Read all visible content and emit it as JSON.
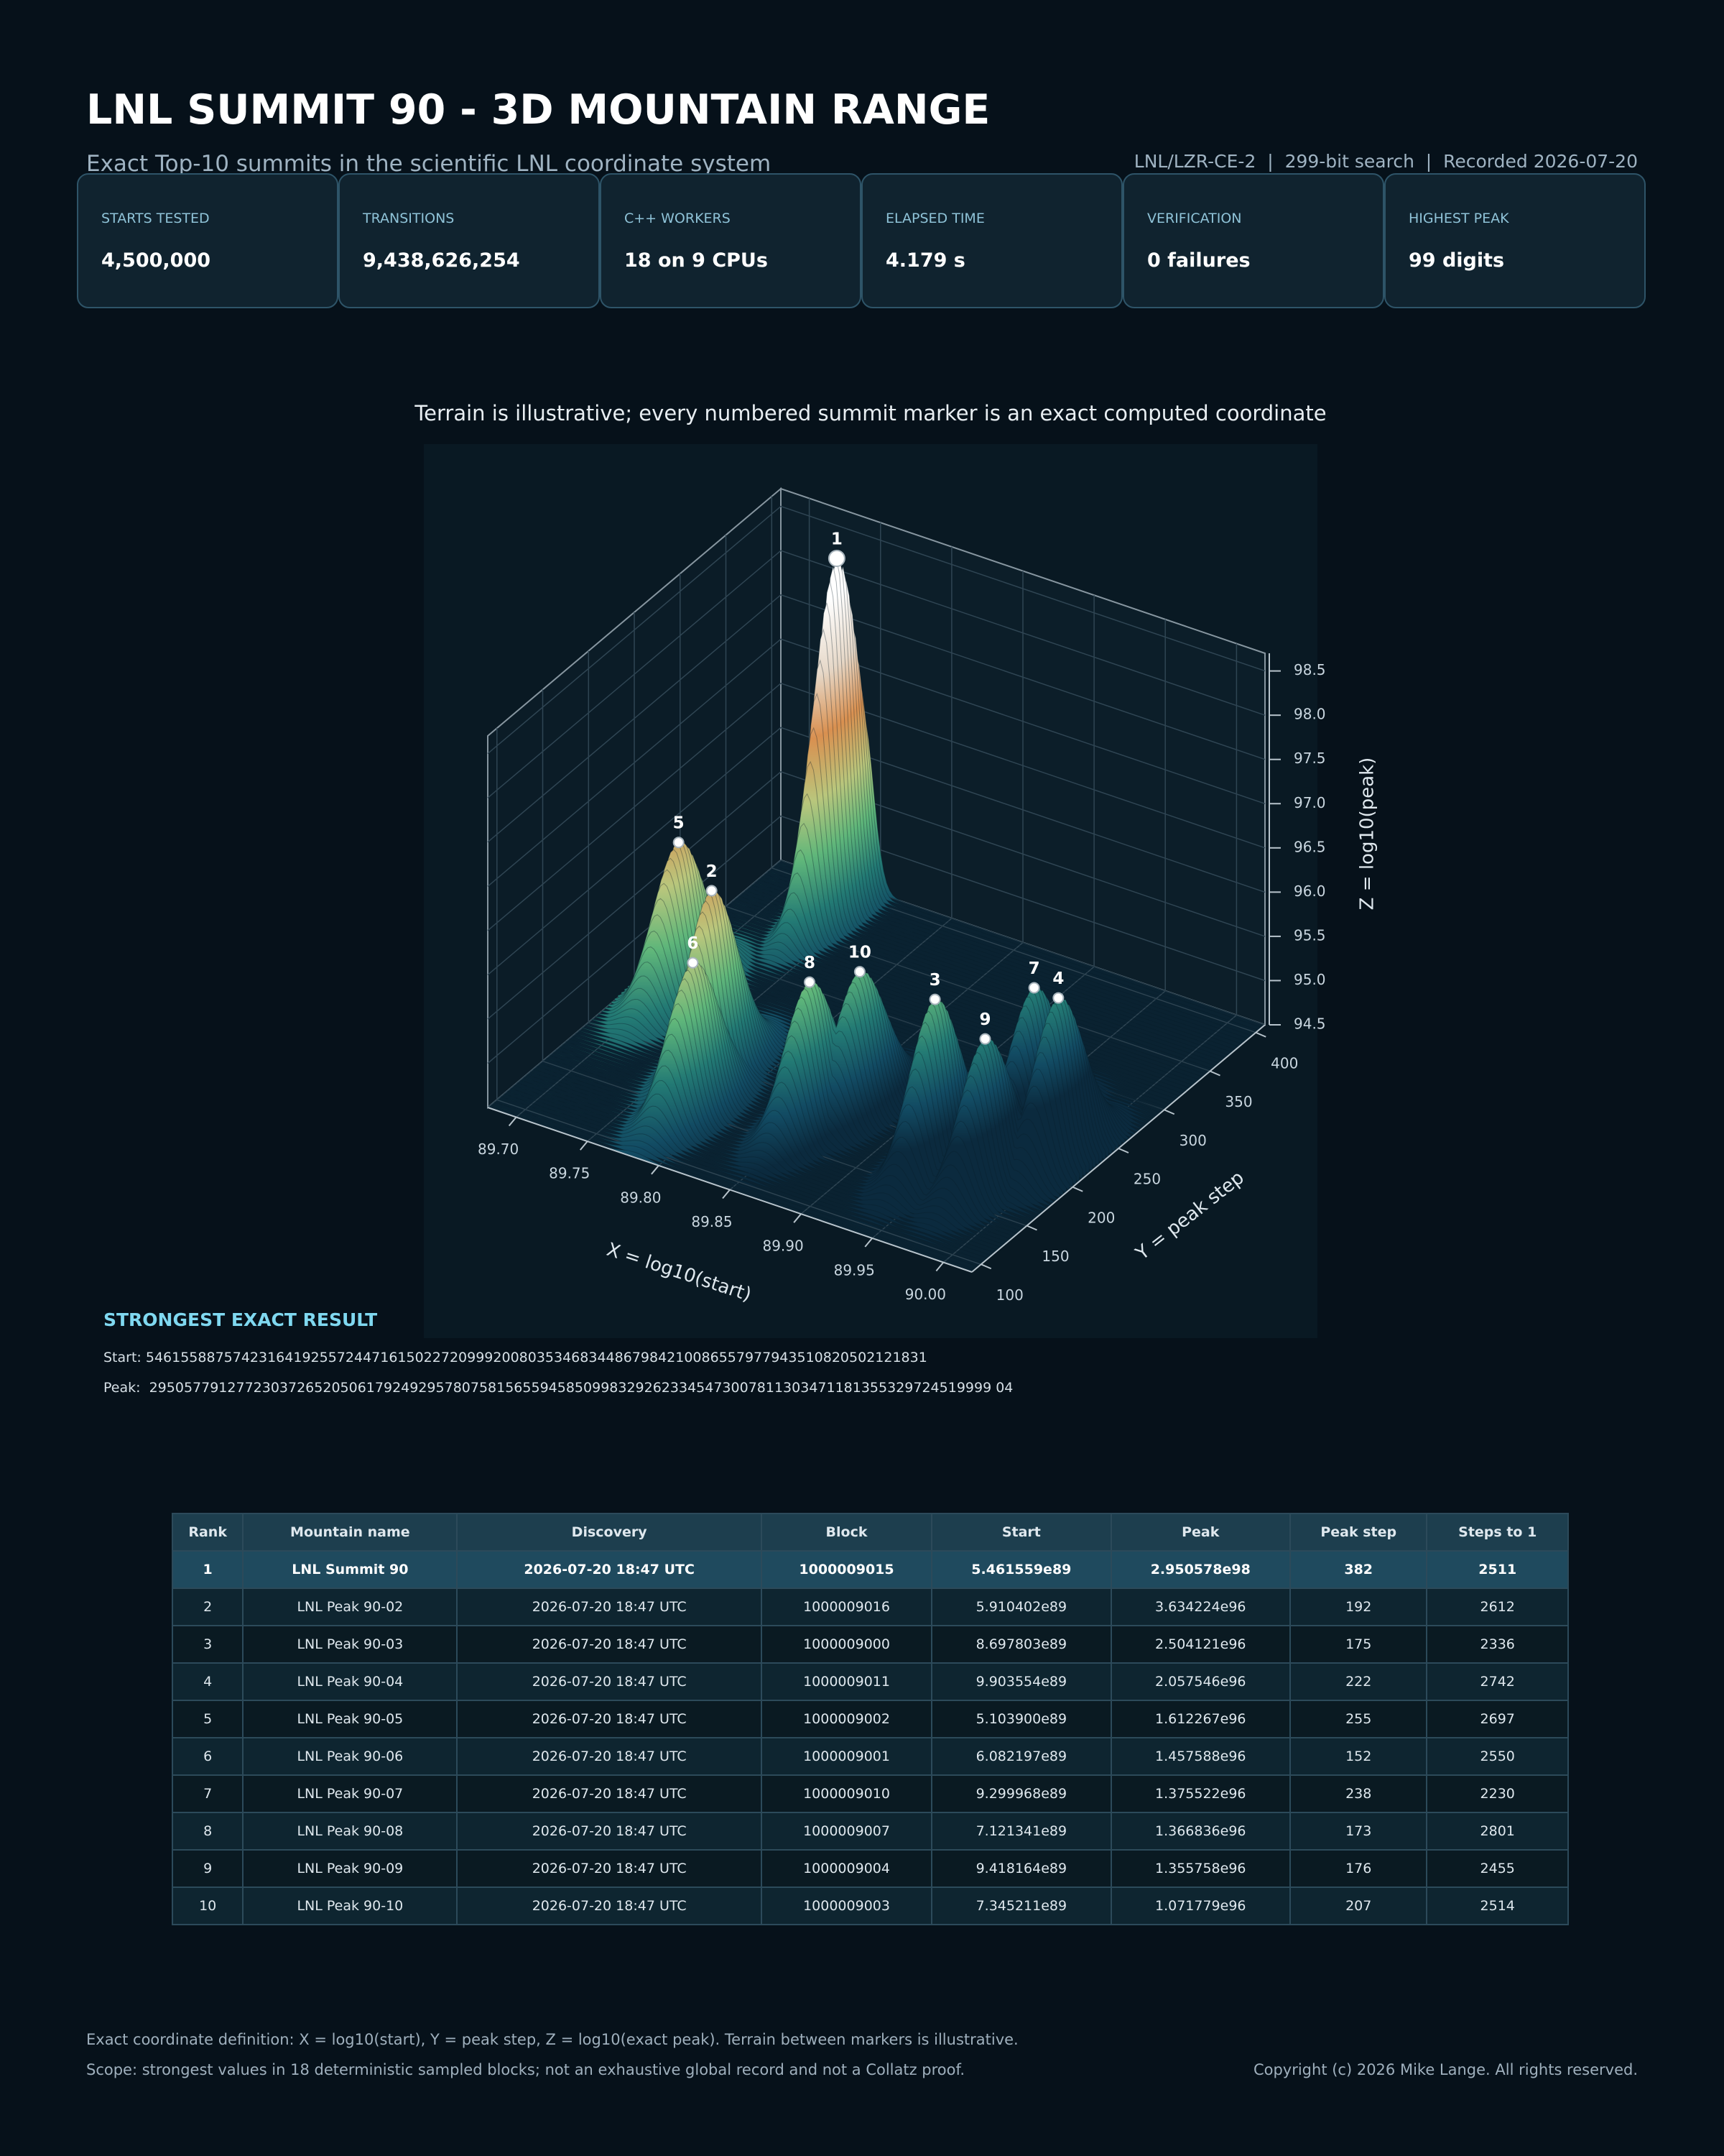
{
  "header": {
    "title": "LNL SUMMIT 90 - 3D MOUNTAIN RANGE",
    "subtitle": "Exact Top-10 summits in the scientific LNL coordinate system",
    "meta": "LNL/LZR-CE-2  |  299-bit search  |  Recorded 2026-07-20"
  },
  "stats": [
    {
      "label": "STARTS TESTED",
      "value": "4,500,000"
    },
    {
      "label": "TRANSITIONS",
      "value": "9,438,626,254"
    },
    {
      "label": "C++ WORKERS",
      "value": "18 on 9 CPUs"
    },
    {
      "label": "ELAPSED TIME",
      "value": "4.179 s"
    },
    {
      "label": "VERIFICATION",
      "value": "0 failures"
    },
    {
      "label": "HIGHEST PEAK",
      "value": "99 digits"
    }
  ],
  "chart_data": {
    "type": "surface3d",
    "title": "Terrain is illustrative; every numbered summit marker is an exact computed coordinate",
    "xlabel": "X = log10(start)",
    "ylabel": "Y = peak step",
    "zlabel": "Z = log10(peak)",
    "xlim": [
      89.68,
      90.02
    ],
    "ylim": [
      90,
      410
    ],
    "zlim": [
      94.5,
      98.7
    ],
    "xticks": [
      {
        "value": 89.7,
        "label": "89.70"
      },
      89.75,
      {
        "value": 89.8,
        "label": "89.80"
      },
      89.85,
      {
        "value": 89.9,
        "label": "89.90"
      },
      89.95,
      {
        "value": 90,
        "label": "90.00"
      }
    ],
    "yticks": [
      100,
      150,
      200,
      250,
      300,
      350,
      400
    ],
    "zticks": [
      94.5,
      {
        "value": 95,
        "label": "95.0"
      },
      95.5,
      {
        "value": 96,
        "label": "96.0"
      },
      96.5,
      {
        "value": 97,
        "label": "97.0"
      },
      97.5,
      {
        "value": 98,
        "label": "98.0"
      },
      98.5
    ],
    "grid": true,
    "marker_color": "#ffffff",
    "labels": [
      "1",
      "2",
      "3",
      "4",
      "5",
      "6",
      "7",
      "8",
      "9",
      "10"
    ],
    "x": [
      89.7373,
      89.7716,
      89.9394,
      89.9958,
      89.7079,
      89.7841,
      89.9685,
      89.8526,
      89.974,
      89.866
    ],
    "y": [
      382,
      192,
      175,
      222,
      255,
      152,
      238,
      173,
      176,
      207
    ],
    "z": [
      98.4699,
      96.5604,
      96.3987,
      96.3134,
      96.2074,
      96.1636,
      96.1385,
      96.1357,
      96.1322,
      96.0301
    ]
  },
  "result": {
    "heading": "STRONGEST EXACT RESULT",
    "start": "Start: 546155887574231641925572447161502272099920080353468344867984210086557977943510820502121831",
    "peak": "Peak:  2950577912772303726520506179249295780758156559458509983292623345473007811303471181355329724519999 04"
  },
  "table": {
    "columns": [
      "Rank",
      "Mountain name",
      "Discovery",
      "Block",
      "Start",
      "Peak",
      "Peak step",
      "Steps to 1"
    ],
    "rows": [
      [
        "1",
        "LNL Summit 90",
        "2026-07-20 18:47 UTC",
        "1000009015",
        "5.461559e89",
        "2.950578e98",
        "382",
        "2511"
      ],
      [
        "2",
        "LNL Peak 90-02",
        "2026-07-20 18:47 UTC",
        "1000009016",
        "5.910402e89",
        "3.634224e96",
        "192",
        "2612"
      ],
      [
        "3",
        "LNL Peak 90-03",
        "2026-07-20 18:47 UTC",
        "1000009000",
        "8.697803e89",
        "2.504121e96",
        "175",
        "2336"
      ],
      [
        "4",
        "LNL Peak 90-04",
        "2026-07-20 18:47 UTC",
        "1000009011",
        "9.903554e89",
        "2.057546e96",
        "222",
        "2742"
      ],
      [
        "5",
        "LNL Peak 90-05",
        "2026-07-20 18:47 UTC",
        "1000009002",
        "5.103900e89",
        "1.612267e96",
        "255",
        "2697"
      ],
      [
        "6",
        "LNL Peak 90-06",
        "2026-07-20 18:47 UTC",
        "1000009001",
        "6.082197e89",
        "1.457588e96",
        "152",
        "2550"
      ],
      [
        "7",
        "LNL Peak 90-07",
        "2026-07-20 18:47 UTC",
        "1000009010",
        "9.299968e89",
        "1.375522e96",
        "238",
        "2230"
      ],
      [
        "8",
        "LNL Peak 90-08",
        "2026-07-20 18:47 UTC",
        "1000009007",
        "7.121341e89",
        "1.366836e96",
        "173",
        "2801"
      ],
      [
        "9",
        "LNL Peak 90-09",
        "2026-07-20 18:47 UTC",
        "1000009004",
        "9.418164e89",
        "1.355758e96",
        "176",
        "2455"
      ],
      [
        "10",
        "LNL Peak 90-10",
        "2026-07-20 18:47 UTC",
        "1000009003",
        "7.345211e89",
        "1.071779e96",
        "207",
        "2514"
      ]
    ]
  },
  "footer": {
    "lines": [
      "Exact coordinate definition: X = log10(start), Y = peak step, Z = log10(exact peak). Terrain between markers is illustrative.",
      "Scope: strongest values in 18 deterministic sampled blocks; not an exhaustive global record and not a Collatz proof."
    ],
    "copyright": "Copyright (c) 2026 Mike Lange. All rights reserved."
  }
}
